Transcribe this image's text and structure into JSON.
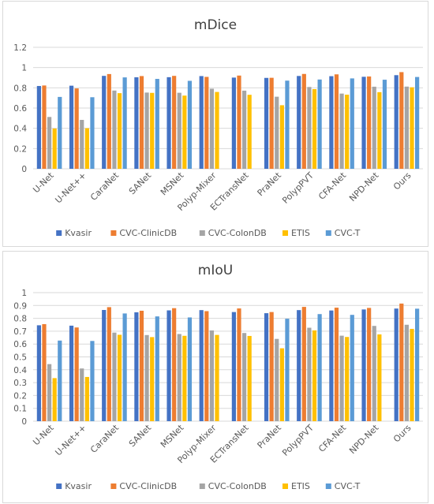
{
  "chart_data": [
    {
      "type": "bar",
      "title": "mDice",
      "xlabel": "",
      "ylabel": "",
      "ylim": [
        0,
        1.2
      ],
      "yticks": [
        "0",
        "0.2",
        "0.4",
        "0.6",
        "0.8",
        "1",
        "1.2"
      ],
      "categories": [
        "U-Net",
        "U-Net++",
        "CaraNet",
        "SANet",
        "MSNet",
        "Polyp-Mixer",
        "ECTransNet",
        "PraNet",
        "PolypPVT",
        "CFA-Net",
        "NPD-Net",
        "Ours"
      ],
      "legend_position": "bottom",
      "grid": true,
      "series": [
        {
          "name": "Kvasir",
          "color": "#4472c4",
          "values": [
            0.818,
            0.821,
            0.918,
            0.904,
            0.905,
            0.916,
            0.901,
            0.898,
            0.917,
            0.915,
            0.909,
            0.925
          ]
        },
        {
          "name": "CVC-ClinicDB",
          "color": "#ed7d31",
          "values": [
            0.823,
            0.794,
            0.936,
            0.916,
            0.918,
            0.908,
            0.921,
            0.899,
            0.937,
            0.933,
            0.912,
            0.955
          ]
        },
        {
          "name": "CVC-ColonDB",
          "color": "#a5a5a5",
          "values": [
            0.512,
            0.483,
            0.773,
            0.753,
            0.751,
            0.791,
            0.772,
            0.712,
            0.808,
            0.743,
            0.811,
            0.812
          ]
        },
        {
          "name": "ETIS",
          "color": "#ffc000",
          "values": [
            0.398,
            0.401,
            0.747,
            0.75,
            0.723,
            0.759,
            0.731,
            0.628,
            0.787,
            0.732,
            0.757,
            0.805
          ]
        },
        {
          "name": "CVC-T",
          "color": "#5b9bd5",
          "values": [
            0.71,
            0.707,
            0.903,
            0.888,
            0.869,
            0.0,
            0.0,
            0.871,
            0.882,
            0.893,
            0.88,
            0.907
          ]
        }
      ]
    },
    {
      "type": "bar",
      "title": "mIoU",
      "xlabel": "",
      "ylabel": "",
      "ylim": [
        0,
        1
      ],
      "yticks": [
        "0",
        "0.1",
        "0.2",
        "0.3",
        "0.4",
        "0.5",
        "0.6",
        "0.7",
        "0.8",
        "0.9",
        "1"
      ],
      "categories": [
        "U-Net",
        "U-Net++",
        "CaraNet",
        "SANet",
        "MSNet",
        "Polyp-Mixer",
        "ECTransNet",
        "PraNet",
        "PolypPVT",
        "CFA-Net",
        "NPD-Net",
        "Ours"
      ],
      "legend_position": "bottom",
      "grid": true,
      "series": [
        {
          "name": "Kvasir",
          "color": "#4472c4",
          "values": [
            0.746,
            0.743,
            0.865,
            0.847,
            0.862,
            0.864,
            0.849,
            0.84,
            0.864,
            0.861,
            0.869,
            0.876
          ]
        },
        {
          "name": "CVC-ClinicDB",
          "color": "#ed7d31",
          "values": [
            0.755,
            0.729,
            0.887,
            0.859,
            0.879,
            0.856,
            0.877,
            0.849,
            0.889,
            0.883,
            0.881,
            0.915
          ]
        },
        {
          "name": "CVC-ColonDB",
          "color": "#a5a5a5",
          "values": [
            0.444,
            0.41,
            0.689,
            0.67,
            0.678,
            0.706,
            0.686,
            0.64,
            0.727,
            0.665,
            0.741,
            0.75
          ]
        },
        {
          "name": "ETIS",
          "color": "#ffc000",
          "values": [
            0.335,
            0.344,
            0.672,
            0.654,
            0.664,
            0.671,
            0.663,
            0.567,
            0.706,
            0.655,
            0.675,
            0.718
          ]
        },
        {
          "name": "CVC-T",
          "color": "#5b9bd5",
          "values": [
            0.627,
            0.624,
            0.838,
            0.815,
            0.807,
            0.0,
            0.0,
            0.797,
            0.833,
            0.827,
            0.0,
            0.875
          ]
        }
      ]
    }
  ]
}
